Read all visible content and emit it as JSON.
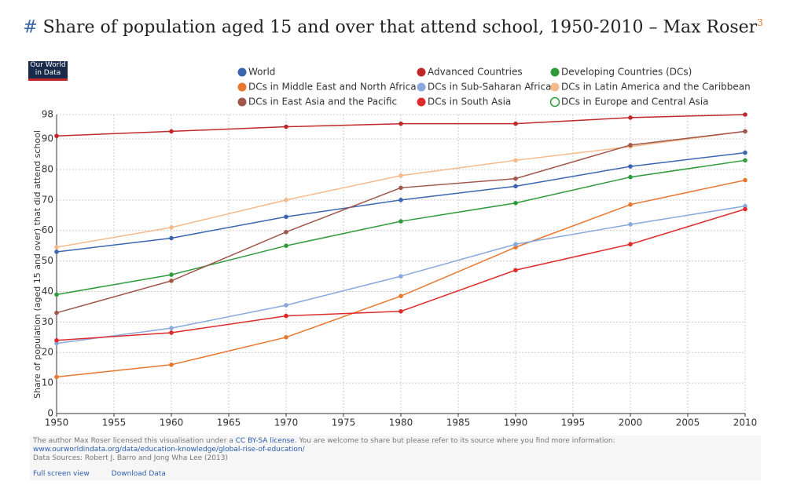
{
  "header": {
    "hash": "#",
    "title": "Share of population aged 15 and over that attend school, 1950-2010 – Max Roser",
    "footnote": "3"
  },
  "logo": {
    "line1": "Our World",
    "line2": "in Data"
  },
  "chart_data": {
    "type": "line",
    "ylabel": "Share of population (aged 15 and over) that did attend school",
    "x": [
      1950,
      1960,
      1970,
      1980,
      1990,
      2000,
      2010
    ],
    "xlim": [
      1950,
      2010
    ],
    "xticks": [
      1950,
      1955,
      1960,
      1965,
      1970,
      1975,
      1980,
      1985,
      1990,
      1995,
      2000,
      2005,
      2010
    ],
    "ylim": [
      0,
      98
    ],
    "yticks": [
      0,
      10,
      20,
      30,
      40,
      50,
      60,
      70,
      80,
      90,
      98
    ],
    "grid": true,
    "series": [
      {
        "name": "World",
        "color": "#3a66b0",
        "values": [
          53,
          57.5,
          64.5,
          70,
          74.5,
          81,
          85.5
        ]
      },
      {
        "name": "Advanced Countries",
        "color": "#c0282a",
        "values": [
          91,
          92.5,
          94,
          95,
          95,
          97,
          98
        ]
      },
      {
        "name": "Developing Countries (DCs)",
        "color": "#2e9a3a",
        "values": [
          39,
          45.5,
          55,
          63,
          69,
          77.5,
          83
        ]
      },
      {
        "name": "DCs in Middle East and North Africa",
        "color": "#e8782f",
        "values": [
          12,
          16,
          25,
          38.5,
          54.5,
          68.5,
          76.5
        ]
      },
      {
        "name": "DCs in Sub-Saharan Africa",
        "color": "#88a8de",
        "values": [
          23,
          28,
          35.5,
          45,
          55.5,
          62,
          68
        ]
      },
      {
        "name": "DCs in Latin America and the Caribbean",
        "color": "#f5b98a",
        "values": [
          54.5,
          61,
          70,
          78,
          83,
          87.5,
          92.5
        ]
      },
      {
        "name": "DCs in East Asia and the Pacific",
        "color": "#a0574a",
        "values": [
          33,
          43.5,
          59.5,
          74,
          77,
          88,
          92.5
        ]
      },
      {
        "name": "DCs in South Asia",
        "color": "#de2c2c",
        "values": [
          24,
          26.5,
          32,
          33.5,
          47,
          55.5,
          67
        ]
      },
      {
        "name": "DCs in Europe and Central Asia",
        "color": "#2e9a3a",
        "marker": "hollow",
        "values": [
          null,
          null,
          null,
          null,
          null,
          null,
          null
        ]
      }
    ]
  },
  "footer": {
    "text1": "The author Max Roser licensed this visualisation under a ",
    "license": "CC BY-SA license",
    "text2": ". You are welcome to share but please refer to its source where you find more information: ",
    "url": "www.ourworldindata.org/data/education-knowledge/global-rise-of-education/",
    "sources": "Data Sources: Robert J. Barro and Jong Wha Lee (2013)",
    "fullscreen": "Full screen view",
    "download": "Download Data"
  }
}
